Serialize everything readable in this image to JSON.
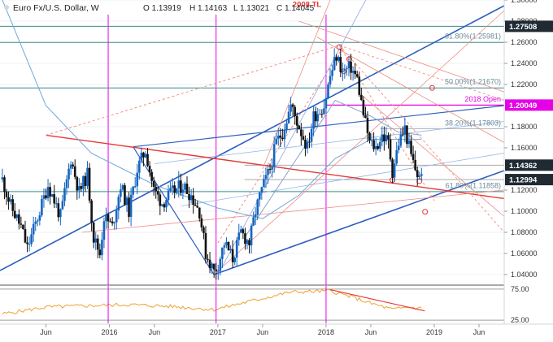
{
  "header": {
    "symbol": "Euro Fx/U.S. Dollar, W",
    "ohlc": {
      "o": "O 1.13919",
      "h": "H 1.14163",
      "l": "L 1.13021",
      "c": "C 1.14045"
    }
  },
  "colors": {
    "up": "#1565c0",
    "down": "#111111",
    "channel": "#2e5fbf",
    "red": "#e53935",
    "pink": "#f28b82",
    "magenta": "#e600e6",
    "teal": "#3d8a8a",
    "orange": "#f5a623",
    "ma": "#6fa8dc",
    "rsi": "#f0a030",
    "rsiDown": "#e53935"
  },
  "chart_data": {
    "type": "candlestick",
    "title": "Euro Fx/U.S. Dollar, W",
    "ylim": [
      1.03,
      1.3
    ],
    "y_ticks": [
      1.04,
      1.06,
      1.08,
      1.1,
      1.12,
      1.16,
      1.18,
      1.22,
      1.24,
      1.26,
      1.28,
      1.3
    ],
    "x_ticks": [
      "Jun",
      "2016",
      "Jun",
      "2017",
      "Jun",
      "2018",
      "Jun",
      "2019",
      "Jun"
    ],
    "x_tick_dates": [
      "2015-06-01",
      "2016-01-01",
      "2016-06-01",
      "2017-01-01",
      "2017-06-01",
      "2018-01-01",
      "2018-06-01",
      "2019-01-01",
      "2019-06-01"
    ],
    "price_tags": [
      {
        "label": "1.27508",
        "value": 1.27508,
        "style": "dark"
      },
      {
        "label": "1.20049",
        "value": 1.20049,
        "style": "magenta"
      },
      {
        "label": "1.14362",
        "value": 1.14362,
        "style": "dark"
      },
      {
        "label": "1.12994",
        "value": 1.12994,
        "style": "dark"
      }
    ],
    "annotations": [
      {
        "text": "2008 TL",
        "date": "2017-11-15",
        "value": 1.292
      },
      {
        "text": "61.80%(1.25981)",
        "date": "2018-11-01",
        "value": 1.262
      },
      {
        "text": "50.00%(1.21670)",
        "date": "2018-11-01",
        "value": 1.219
      },
      {
        "text": "2018 Open",
        "date": "2018-10-20",
        "value": 1.2025
      },
      {
        "text": "38.20%(1.17803)",
        "date": "2018-11-01",
        "value": 1.1795
      },
      {
        "text": "61.80%(1.11858)",
        "date": "2018-10-01",
        "value": 1.1205
      }
    ],
    "levels": [
      {
        "value": 1.27508,
        "kind": "teal"
      },
      {
        "value": 1.25981,
        "kind": "teal"
      },
      {
        "value": 1.2167,
        "kind": "teal"
      },
      {
        "value": 1.11858,
        "kind": "teal"
      },
      {
        "value": 1.20049,
        "kind": "magenta"
      }
    ],
    "closes": [
      {
        "date": "2015-01-05",
        "value": 1.13
      },
      {
        "date": "2015-02-02",
        "value": 1.105
      },
      {
        "date": "2015-03-09",
        "value": 1.085
      },
      {
        "date": "2015-03-30",
        "value": 1.065
      },
      {
        "date": "2015-05-11",
        "value": 1.1
      },
      {
        "date": "2015-06-08",
        "value": 1.125
      },
      {
        "date": "2015-07-20",
        "value": 1.095
      },
      {
        "date": "2015-08-24",
        "value": 1.15
      },
      {
        "date": "2015-09-21",
        "value": 1.118
      },
      {
        "date": "2015-10-19",
        "value": 1.135
      },
      {
        "date": "2015-11-09",
        "value": 1.075
      },
      {
        "date": "2015-11-30",
        "value": 1.06
      },
      {
        "date": "2015-12-14",
        "value": 1.095
      },
      {
        "date": "2016-01-11",
        "value": 1.085
      },
      {
        "date": "2016-02-08",
        "value": 1.125
      },
      {
        "date": "2016-03-07",
        "value": 1.1
      },
      {
        "date": "2016-04-04",
        "value": 1.14
      },
      {
        "date": "2016-05-02",
        "value": 1.158
      },
      {
        "date": "2016-05-30",
        "value": 1.12
      },
      {
        "date": "2016-06-27",
        "value": 1.108
      },
      {
        "date": "2016-08-01",
        "value": 1.118
      },
      {
        "date": "2016-09-05",
        "value": 1.125
      },
      {
        "date": "2016-10-03",
        "value": 1.115
      },
      {
        "date": "2016-10-31",
        "value": 1.1
      },
      {
        "date": "2016-11-21",
        "value": 1.06
      },
      {
        "date": "2016-12-19",
        "value": 1.043
      },
      {
        "date": "2017-01-02",
        "value": 1.05
      },
      {
        "date": "2017-01-23",
        "value": 1.07
      },
      {
        "date": "2017-02-20",
        "value": 1.055
      },
      {
        "date": "2017-03-20",
        "value": 1.08
      },
      {
        "date": "2017-04-17",
        "value": 1.07
      },
      {
        "date": "2017-05-08",
        "value": 1.1
      },
      {
        "date": "2017-05-29",
        "value": 1.12
      },
      {
        "date": "2017-06-26",
        "value": 1.14
      },
      {
        "date": "2017-07-17",
        "value": 1.165
      },
      {
        "date": "2017-08-07",
        "value": 1.175
      },
      {
        "date": "2017-09-04",
        "value": 1.2
      },
      {
        "date": "2017-10-02",
        "value": 1.18
      },
      {
        "date": "2017-10-30",
        "value": 1.16
      },
      {
        "date": "2017-11-20",
        "value": 1.19
      },
      {
        "date": "2017-12-25",
        "value": 1.2
      },
      {
        "date": "2018-01-15",
        "value": 1.228
      },
      {
        "date": "2018-02-05",
        "value": 1.247
      },
      {
        "date": "2018-02-26",
        "value": 1.232
      },
      {
        "date": "2018-03-26",
        "value": 1.236
      },
      {
        "date": "2018-04-16",
        "value": 1.225
      },
      {
        "date": "2018-05-07",
        "value": 1.192
      },
      {
        "date": "2018-05-28",
        "value": 1.165
      },
      {
        "date": "2018-06-18",
        "value": 1.16
      },
      {
        "date": "2018-07-09",
        "value": 1.172
      },
      {
        "date": "2018-07-30",
        "value": 1.165
      },
      {
        "date": "2018-08-13",
        "value": 1.138
      },
      {
        "date": "2018-09-03",
        "value": 1.165
      },
      {
        "date": "2018-09-24",
        "value": 1.178
      },
      {
        "date": "2018-10-15",
        "value": 1.152
      },
      {
        "date": "2018-10-29",
        "value": 1.14
      },
      {
        "date": "2018-11-12",
        "value": 1.13
      },
      {
        "date": "2018-11-19",
        "value": 1.14
      }
    ],
    "ma": [
      {
        "date": "2015-01-05",
        "value": 1.3
      },
      {
        "date": "2015-06-01",
        "value": 1.2
      },
      {
        "date": "2015-11-01",
        "value": 1.155
      },
      {
        "date": "2016-06-01",
        "value": 1.125
      },
      {
        "date": "2017-01-01",
        "value": 1.103
      },
      {
        "date": "2017-06-01",
        "value": 1.093
      },
      {
        "date": "2017-10-01",
        "value": 1.115
      },
      {
        "date": "2018-02-01",
        "value": 1.15
      },
      {
        "date": "2018-06-01",
        "value": 1.168
      },
      {
        "date": "2018-11-19",
        "value": 1.168
      }
    ],
    "ma_fast": [
      {
        "date": "2017-04-01",
        "value": 1.075
      },
      {
        "date": "2017-09-01",
        "value": 1.14
      },
      {
        "date": "2018-02-01",
        "value": 1.205
      },
      {
        "date": "2018-06-01",
        "value": 1.19
      },
      {
        "date": "2018-09-01",
        "value": 1.175
      },
      {
        "date": "2018-11-19",
        "value": 1.172
      }
    ],
    "rsi": {
      "ticks": [
        75.0,
        25.0
      ],
      "ylim": [
        20,
        80
      ],
      "points": [
        {
          "date": "2015-01-05",
          "value": 35
        },
        {
          "date": "2015-06-01",
          "value": 46
        },
        {
          "date": "2015-10-01",
          "value": 48
        },
        {
          "date": "2016-03-01",
          "value": 50
        },
        {
          "date": "2016-08-01",
          "value": 47
        },
        {
          "date": "2016-12-20",
          "value": 42
        },
        {
          "date": "2017-03-01",
          "value": 50
        },
        {
          "date": "2017-06-01",
          "value": 60
        },
        {
          "date": "2017-09-01",
          "value": 70
        },
        {
          "date": "2018-01-15",
          "value": 72
        },
        {
          "date": "2018-04-01",
          "value": 62
        },
        {
          "date": "2018-06-01",
          "value": 52
        },
        {
          "date": "2018-08-15",
          "value": 42
        },
        {
          "date": "2018-10-01",
          "value": 46
        },
        {
          "date": "2018-11-19",
          "value": 44
        }
      ]
    }
  }
}
